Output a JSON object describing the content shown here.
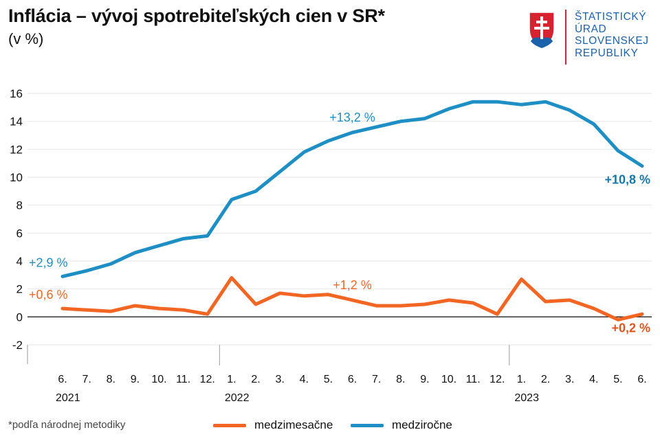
{
  "header": {
    "title": "Inflácia – vývoj spotrebiteľských cien v SR*",
    "subtitle": "(v %)"
  },
  "logo": {
    "icon": "slovak-coat-of-arms-icon",
    "lines": [
      "ŠTATISTICKÝ",
      "ÚRAD",
      "SLOVENSKEJ",
      "REPUBLIKY"
    ]
  },
  "footnote": "*podľa národnej metodiky",
  "colors": {
    "monthly": "#f26522",
    "yearly": "#1d8fc4",
    "axis": "#222222",
    "grid": "#e6e6e6",
    "label_yearly_end": "#1479a8",
    "label_monthly_end": "#e0531b"
  },
  "chart_data": {
    "type": "line",
    "title": "Inflácia – vývoj spotrebiteľských cien v SR*",
    "ylabel": "(v %)",
    "xlabel": "",
    "ylim": [
      -2,
      16
    ],
    "yticks": [
      "-2",
      "0",
      "2",
      "4",
      "6",
      "8",
      "10",
      "12",
      "14",
      "16"
    ],
    "grid": true,
    "legend_position": "bottom",
    "categories": [
      "6.",
      "7.",
      "8.",
      "9.",
      "10.",
      "11.",
      "12.",
      "1.",
      "2.",
      "3.",
      "4.",
      "5.",
      "6.",
      "7.",
      "8.",
      "9.",
      "10.",
      "11.",
      "12.",
      "1.",
      "2.",
      "3.",
      "4.",
      "5.",
      "6."
    ],
    "years": [
      {
        "label": "2021",
        "index": 0
      },
      {
        "label": "2022",
        "index": 7
      },
      {
        "label": "2023",
        "index": 19
      }
    ],
    "series": [
      {
        "name": "medzimesačne",
        "key": "monthly",
        "values": [
          0.6,
          0.5,
          0.4,
          0.8,
          0.6,
          0.5,
          0.2,
          2.8,
          0.9,
          1.7,
          1.5,
          1.6,
          1.2,
          0.8,
          0.8,
          0.9,
          1.2,
          1.0,
          0.2,
          2.7,
          1.1,
          1.2,
          0.6,
          -0.2,
          0.2
        ]
      },
      {
        "name": "medziročne",
        "key": "yearly",
        "values": [
          2.9,
          3.3,
          3.8,
          4.6,
          5.1,
          5.6,
          5.8,
          8.4,
          9.0,
          10.4,
          11.8,
          12.6,
          13.2,
          13.6,
          14.0,
          14.2,
          14.9,
          15.4,
          15.4,
          15.2,
          15.4,
          14.8,
          13.8,
          11.9,
          10.8
        ]
      }
    ],
    "annotations": [
      {
        "text": "+2,9 %",
        "series": "yearly",
        "index": 0
      },
      {
        "text": "+13,2 %",
        "series": "yearly",
        "index": 12
      },
      {
        "text": "+10,8 %",
        "series": "yearly",
        "index": 24
      },
      {
        "text": "+0,6 %",
        "series": "monthly",
        "index": 0
      },
      {
        "text": "+1,2 %",
        "series": "monthly",
        "index": 12
      },
      {
        "text": "+0,2 %",
        "series": "monthly",
        "index": 24
      }
    ]
  }
}
